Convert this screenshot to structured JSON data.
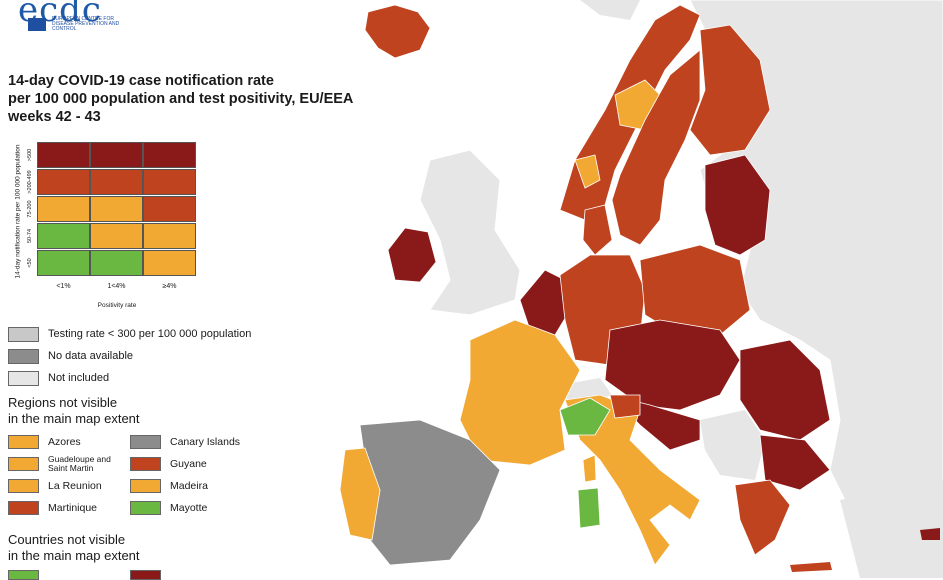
{
  "colors": {
    "dark_red": "#8a1a1a",
    "red": "#c0431f",
    "orange": "#f2a933",
    "green": "#6ab841",
    "grey_testing": "#c8c8c8",
    "grey_nodata": "#8c8c8c",
    "not_included": "#e6e6e6",
    "sea": "#ffffff"
  },
  "logo": {
    "text": "ecdc",
    "subtitle": "EUROPEAN CENTRE FOR DISEASE PREVENTION AND CONTROL"
  },
  "title": {
    "line1": "14-day COVID-19 case notification rate",
    "line2": "per 100 000 population and test positivity, EU/EEA",
    "line3": "weeks 42 - 43"
  },
  "matrix": {
    "y_axis_label": "14-day notification rate per 100 000 population",
    "x_axis_label": "Positivity rate",
    "rows": [
      ">500",
      ">200-499",
      "75-200",
      "50-74",
      "<50"
    ],
    "cols": [
      "<1%",
      "1<4%",
      "≥4%"
    ],
    "cells": [
      [
        "dark_red",
        "dark_red",
        "dark_red"
      ],
      [
        "red",
        "red",
        "red"
      ],
      [
        "orange",
        "orange",
        "red"
      ],
      [
        "green",
        "orange",
        "orange"
      ],
      [
        "green",
        "green",
        "orange"
      ]
    ]
  },
  "legend": [
    {
      "label": "Testing rate < 300 per 100 000 population",
      "color": "grey_testing"
    },
    {
      "label": "No data available",
      "color": "grey_nodata"
    },
    {
      "label": "Not included",
      "color": "not_included"
    }
  ],
  "regions_section": {
    "line1": "Regions not visible",
    "line2": "in the main map extent"
  },
  "regions": [
    {
      "label": "Azores",
      "color": "orange"
    },
    {
      "label": "Guadeloupe and Saint Martin",
      "color": "orange"
    },
    {
      "label": "La Reunion",
      "color": "orange"
    },
    {
      "label": "Martinique",
      "color": "red"
    },
    {
      "label": "Canary Islands",
      "color": "grey_nodata"
    },
    {
      "label": "Guyane",
      "color": "red"
    },
    {
      "label": "Madeira",
      "color": "orange"
    },
    {
      "label": "Mayotte",
      "color": "green"
    }
  ],
  "countries_section": {
    "line1": "Countries not visible",
    "line2": "in the main map extent"
  }
}
